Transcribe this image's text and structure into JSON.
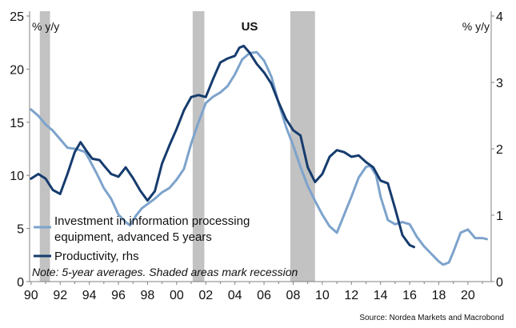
{
  "chart_data": {
    "type": "line",
    "title": "US",
    "y_left_label": "% y/y",
    "y_right_label": "% y/y",
    "x_axis": {
      "min": 1989.9,
      "max": 2021.6,
      "ticks": [
        1990,
        1992,
        1994,
        1996,
        1998,
        2000,
        2002,
        2004,
        2006,
        2008,
        2010,
        2012,
        2014,
        2016,
        2018,
        2020
      ],
      "tick_labels": [
        "90",
        "92",
        "94",
        "96",
        "98",
        "00",
        "02",
        "04",
        "06",
        "08",
        "10",
        "12",
        "14",
        "16",
        "18",
        "20"
      ]
    },
    "y_left": {
      "min": 0,
      "max": 25,
      "ticks": [
        0,
        5,
        10,
        15,
        20,
        25
      ]
    },
    "y_right": {
      "min": 0,
      "max": 4,
      "ticks": [
        0,
        1,
        2,
        3,
        4
      ]
    },
    "recessions": [
      [
        1990.6,
        1991.3
      ],
      [
        2001.1,
        2001.9
      ],
      [
        2007.8,
        2009.5
      ]
    ],
    "series": [
      {
        "name": "Investment in information processing equipment, advanced 5 years",
        "axis": "left",
        "color": "#7da3cc",
        "points": [
          [
            1990,
            16.2
          ],
          [
            1990.5,
            15.6
          ],
          [
            1991,
            14.8
          ],
          [
            1991.5,
            14.2
          ],
          [
            1992,
            13.4
          ],
          [
            1992.5,
            12.6
          ],
          [
            1993,
            12.5
          ],
          [
            1993.3,
            12.4
          ],
          [
            1993.7,
            12.2
          ],
          [
            1994,
            11.5
          ],
          [
            1994.5,
            10.2
          ],
          [
            1995,
            8.8
          ],
          [
            1995.5,
            7.8
          ],
          [
            1996,
            6.3
          ],
          [
            1996.5,
            5.6
          ],
          [
            1996.8,
            5.3
          ],
          [
            1997.2,
            6.2
          ],
          [
            1997.6,
            6.9
          ],
          [
            1998,
            7.3
          ],
          [
            1998.5,
            7.8
          ],
          [
            1999,
            8.4
          ],
          [
            1999.5,
            8.8
          ],
          [
            2000,
            9.6
          ],
          [
            2000.5,
            10.6
          ],
          [
            2001,
            13.0
          ],
          [
            2001.5,
            15.0
          ],
          [
            2002,
            16.8
          ],
          [
            2002.5,
            17.4
          ],
          [
            2003,
            17.8
          ],
          [
            2003.5,
            18.4
          ],
          [
            2004,
            19.5
          ],
          [
            2004.5,
            20.9
          ],
          [
            2005,
            21.5
          ],
          [
            2005.5,
            21.6
          ],
          [
            2006,
            20.8
          ],
          [
            2006.5,
            19.3
          ],
          [
            2007,
            16.8
          ],
          [
            2007.5,
            14.6
          ],
          [
            2008,
            12.8
          ],
          [
            2008.5,
            10.8
          ],
          [
            2009,
            9.0
          ],
          [
            2009.5,
            7.6
          ],
          [
            2010,
            6.3
          ],
          [
            2010.5,
            5.2
          ],
          [
            2011,
            4.6
          ],
          [
            2011.5,
            6.3
          ],
          [
            2012,
            8.0
          ],
          [
            2012.5,
            9.8
          ],
          [
            2013,
            10.8
          ],
          [
            2013.3,
            10.9
          ],
          [
            2013.7,
            10.0
          ],
          [
            2014,
            8.0
          ],
          [
            2014.5,
            5.8
          ],
          [
            2015,
            5.4
          ],
          [
            2015.5,
            5.6
          ],
          [
            2016,
            5.4
          ],
          [
            2016.5,
            4.2
          ],
          [
            2017,
            3.3
          ],
          [
            2017.5,
            2.6
          ],
          [
            2018,
            1.9
          ],
          [
            2018.3,
            1.6
          ],
          [
            2018.7,
            1.8
          ],
          [
            2019,
            2.8
          ],
          [
            2019.5,
            4.6
          ],
          [
            2020,
            4.9
          ],
          [
            2020.5,
            4.1
          ],
          [
            2021,
            4.1
          ],
          [
            2021.3,
            4.0
          ]
        ]
      },
      {
        "name": "Productivity, rhs",
        "axis": "right",
        "color": "#163c6e",
        "points": [
          [
            1990,
            1.55
          ],
          [
            1990.5,
            1.62
          ],
          [
            1991,
            1.55
          ],
          [
            1991.5,
            1.38
          ],
          [
            1992,
            1.32
          ],
          [
            1992.5,
            1.62
          ],
          [
            1993,
            1.95
          ],
          [
            1993.4,
            2.1
          ],
          [
            1993.8,
            1.97
          ],
          [
            1994.2,
            1.85
          ],
          [
            1994.7,
            1.83
          ],
          [
            1995,
            1.75
          ],
          [
            1995.5,
            1.62
          ],
          [
            1996,
            1.58
          ],
          [
            1996.5,
            1.72
          ],
          [
            1997,
            1.56
          ],
          [
            1997.5,
            1.37
          ],
          [
            1998,
            1.22
          ],
          [
            1998.5,
            1.36
          ],
          [
            1999,
            1.78
          ],
          [
            1999.5,
            2.05
          ],
          [
            2000,
            2.3
          ],
          [
            2000.5,
            2.58
          ],
          [
            2001,
            2.78
          ],
          [
            2001.5,
            2.81
          ],
          [
            2002,
            2.78
          ],
          [
            2002.5,
            3.05
          ],
          [
            2003,
            3.3
          ],
          [
            2003.5,
            3.36
          ],
          [
            2004,
            3.4
          ],
          [
            2004.3,
            3.52
          ],
          [
            2004.6,
            3.55
          ],
          [
            2005,
            3.45
          ],
          [
            2005.5,
            3.28
          ],
          [
            2006,
            3.15
          ],
          [
            2006.5,
            2.98
          ],
          [
            2007,
            2.7
          ],
          [
            2007.5,
            2.45
          ],
          [
            2008,
            2.28
          ],
          [
            2008.5,
            2.2
          ],
          [
            2009,
            1.72
          ],
          [
            2009.5,
            1.5
          ],
          [
            2010,
            1.62
          ],
          [
            2010.5,
            1.88
          ],
          [
            2011,
            1.98
          ],
          [
            2011.5,
            1.95
          ],
          [
            2012,
            1.88
          ],
          [
            2012.5,
            1.9
          ],
          [
            2013,
            1.8
          ],
          [
            2013.5,
            1.72
          ],
          [
            2014,
            1.52
          ],
          [
            2014.5,
            1.48
          ],
          [
            2015,
            1.1
          ],
          [
            2015.5,
            0.7
          ],
          [
            2016,
            0.55
          ],
          [
            2016.3,
            0.52
          ]
        ]
      }
    ],
    "legend": {
      "position": "bottom-left",
      "entries": [
        {
          "label_line1": "Investment in information processing",
          "label_line2": "equipment, advanced 5 years"
        },
        {
          "label_line1": "Productivity, rhs"
        }
      ]
    },
    "note": "Note: 5-year averages. Shaded areas mark recession",
    "source": "Source: Nordea Markets and Macrobond",
    "colors": {
      "recession": "#c2c2c2",
      "axis": "#808080",
      "text": "#111111"
    }
  }
}
